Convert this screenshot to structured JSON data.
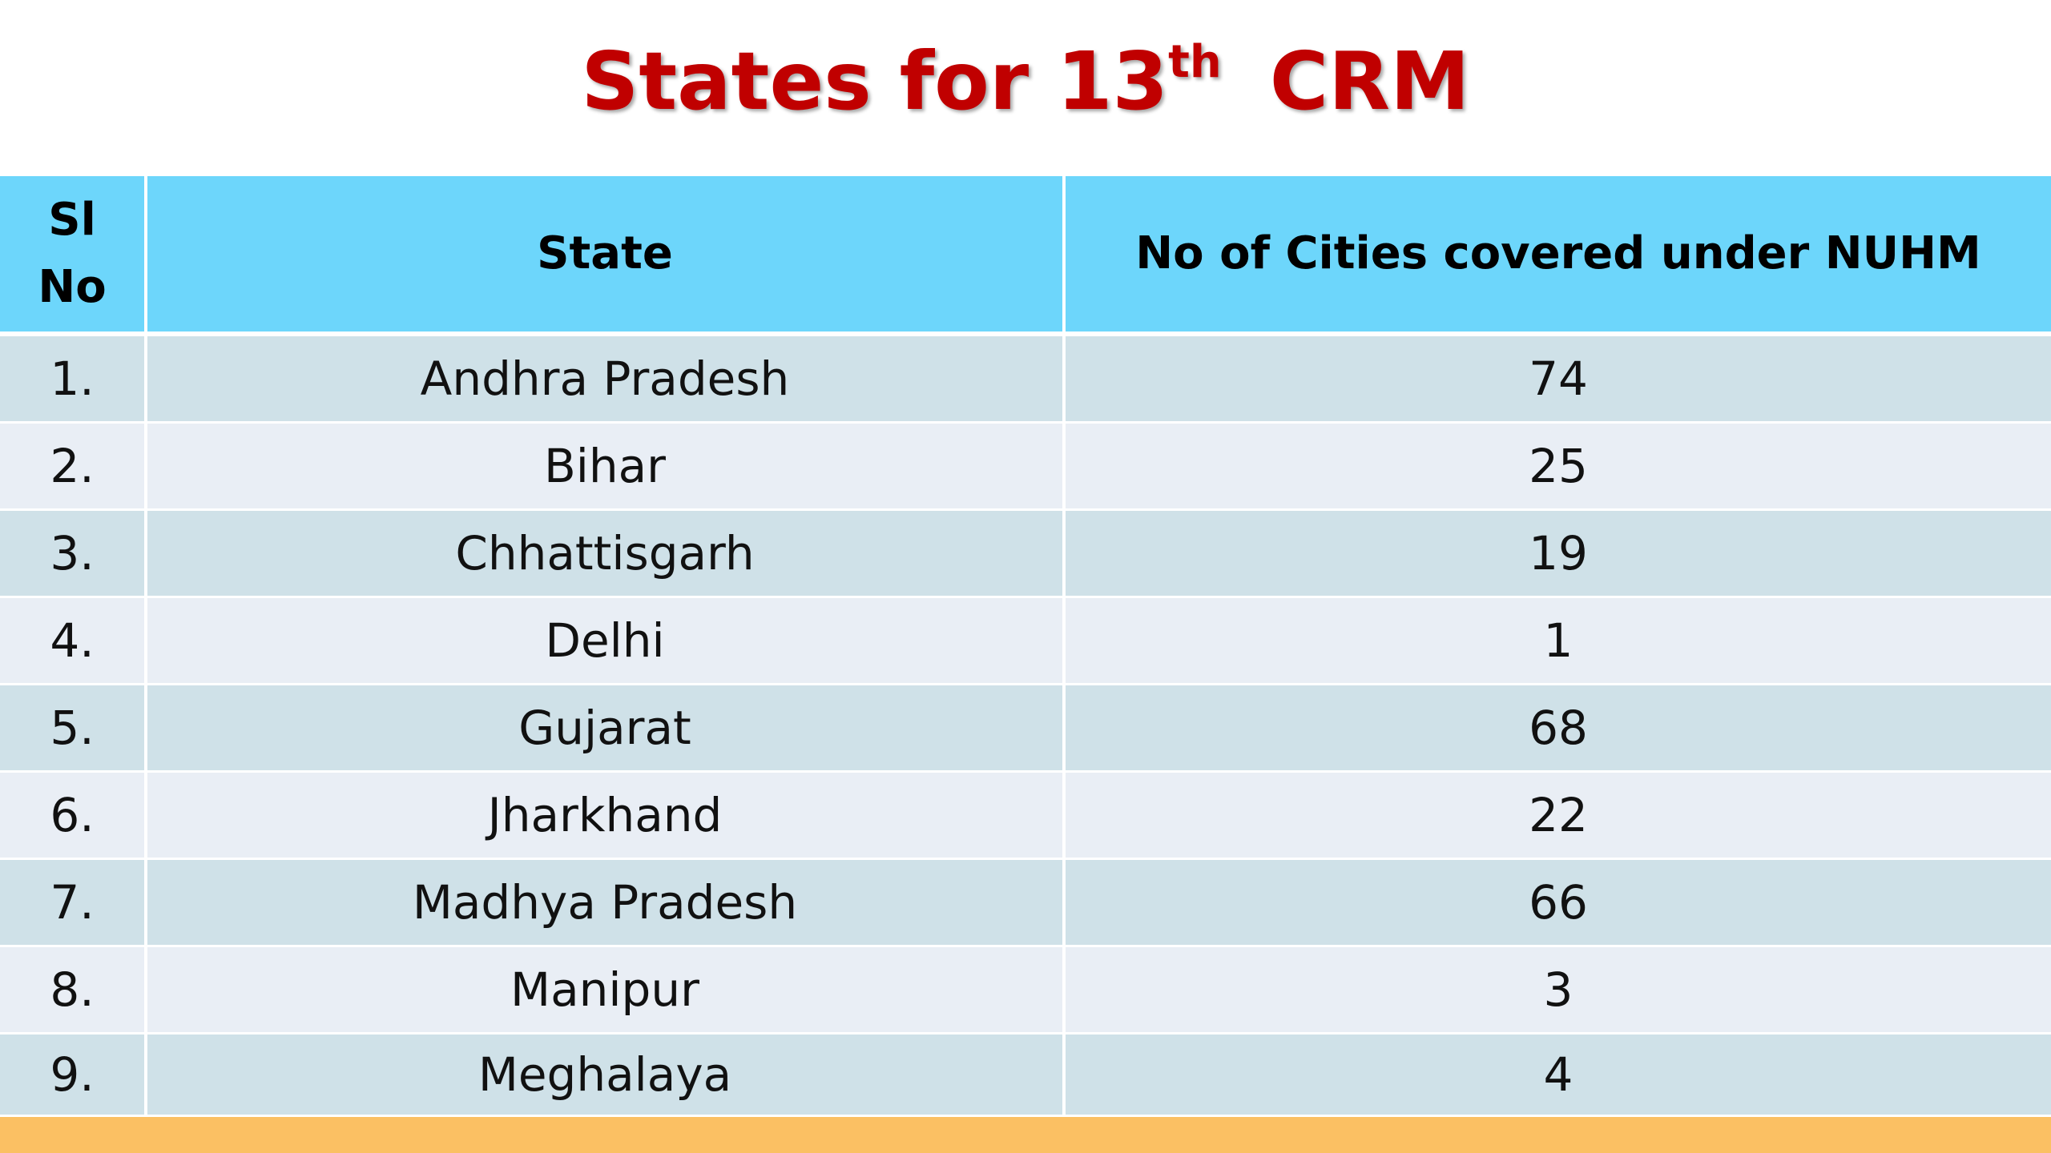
{
  "slide": {
    "title_main": "States for 13",
    "title_sup": "th",
    "title_end": "CRM"
  },
  "table": {
    "headers": [
      "Sl No",
      "State",
      "No of  Cities covered under NUHM"
    ],
    "rows": [
      {
        "sl": "1.",
        "state": "Andhra Pradesh",
        "cities": "74"
      },
      {
        "sl": "2.",
        "state": "Bihar",
        "cities": "25"
      },
      {
        "sl": "3.",
        "state": "Chhattisgarh",
        "cities": "19"
      },
      {
        "sl": "4.",
        "state": "Delhi",
        "cities": "1"
      },
      {
        "sl": "5.",
        "state": "Gujarat",
        "cities": "68"
      },
      {
        "sl": "6.",
        "state": "Jharkhand",
        "cities": "22"
      },
      {
        "sl": "7.",
        "state": "Madhya Pradesh",
        "cities": "66"
      },
      {
        "sl": "8.",
        "state": "Manipur",
        "cities": "3"
      },
      {
        "sl": "9.",
        "state": "Meghalaya",
        "cities": "4"
      }
    ]
  },
  "colors": {
    "title": "#c00000",
    "header_bg": "#6dd6fb",
    "row_odd": "#cfe1e8",
    "row_even": "#e9eef5",
    "footer_bar": "#fbc063"
  }
}
